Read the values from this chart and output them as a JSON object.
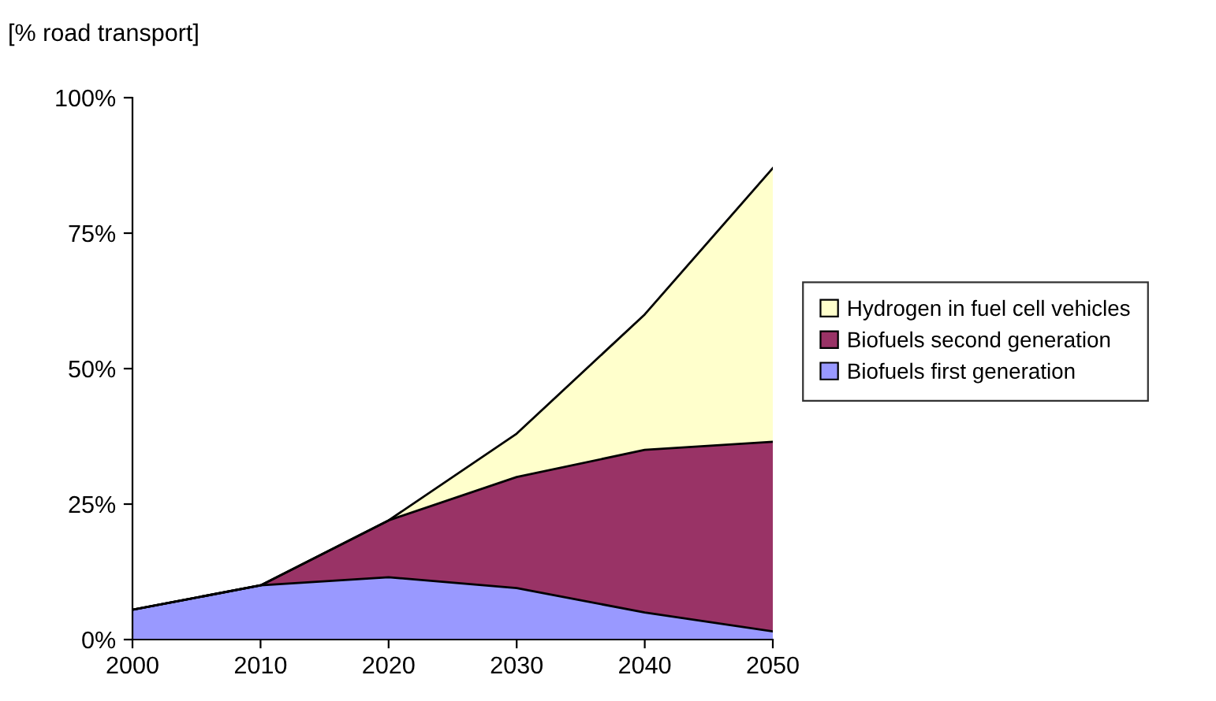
{
  "chart_data": {
    "type": "area",
    "stacked": true,
    "ylabel": "[% road transport]",
    "x": [
      2000,
      2010,
      2020,
      2030,
      2040,
      2050
    ],
    "series": [
      {
        "name": "Biofuels first generation",
        "color": "#9999ff",
        "values": [
          5.5,
          10,
          11.5,
          9.5,
          5,
          1.5
        ]
      },
      {
        "name": "Biofuels second generation",
        "color": "#993366",
        "values": [
          0,
          0,
          10.5,
          20.5,
          30,
          35
        ]
      },
      {
        "name": "Hydrogen in fuel cell vehicles",
        "color": "#ffffcc",
        "values": [
          0,
          0,
          0,
          8,
          25,
          50.5
        ]
      }
    ],
    "xlim": [
      2000,
      2050
    ],
    "xticks": [
      2000,
      2010,
      2020,
      2030,
      2040,
      2050
    ],
    "ylim": [
      0,
      100
    ],
    "yticks": [
      {
        "value": 0,
        "label": "0%"
      },
      {
        "value": 25,
        "label": "25%"
      },
      {
        "value": 50,
        "label": "50%"
      },
      {
        "value": 75,
        "label": "75%"
      },
      {
        "value": 100,
        "label": "100%"
      }
    ],
    "grid": false,
    "legend": "right"
  }
}
